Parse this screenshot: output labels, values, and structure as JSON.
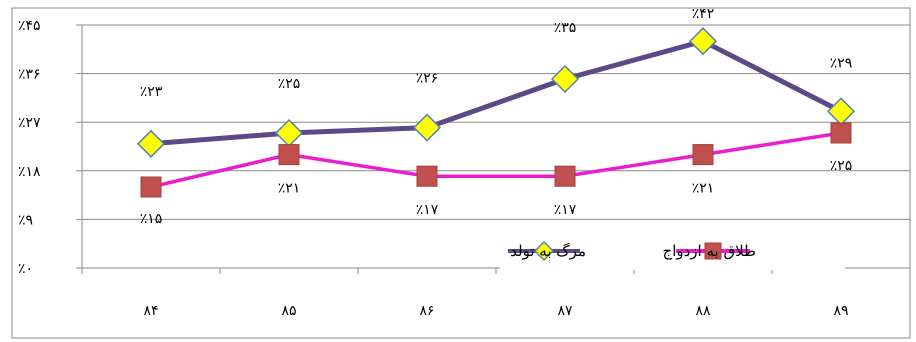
{
  "chart_data": {
    "type": "line",
    "categories": [
      "۸۴",
      "۸۵",
      "۸۶",
      "۸۷",
      "۸۸",
      "۸۹"
    ],
    "y_ticks": [
      "٪۰",
      "٪۹",
      "٪۱۸",
      "٪۲۷",
      "٪۳۶",
      "٪۴۵"
    ],
    "ylim": [
      0,
      45
    ],
    "grid": "horizontal",
    "legend_position": "bottom-right",
    "series": [
      {
        "name": "مرگ به تولد",
        "values": [
          23,
          25,
          26,
          35,
          42,
          29
        ],
        "labels": [
          "٪۲۳",
          "٪۲۵",
          "٪۲۶",
          "٪۳۵",
          "٪۴۲",
          "٪۲۹"
        ],
        "color": "#5B4A86",
        "marker": "diamond",
        "marker_color": "#FFFF00",
        "marker_edge": "#4F81BD"
      },
      {
        "name": "طلاق به ازدواج",
        "values": [
          15,
          21,
          17,
          17,
          21,
          25
        ],
        "labels": [
          "٪۱۵",
          "٪۲۱",
          "٪۱۷",
          "٪۱۷",
          "٪۲۱",
          "٪۲۵"
        ],
        "color": "#E81ECF",
        "marker": "square",
        "marker_color": "#C0504D",
        "marker_edge": "#A0403D"
      }
    ]
  }
}
